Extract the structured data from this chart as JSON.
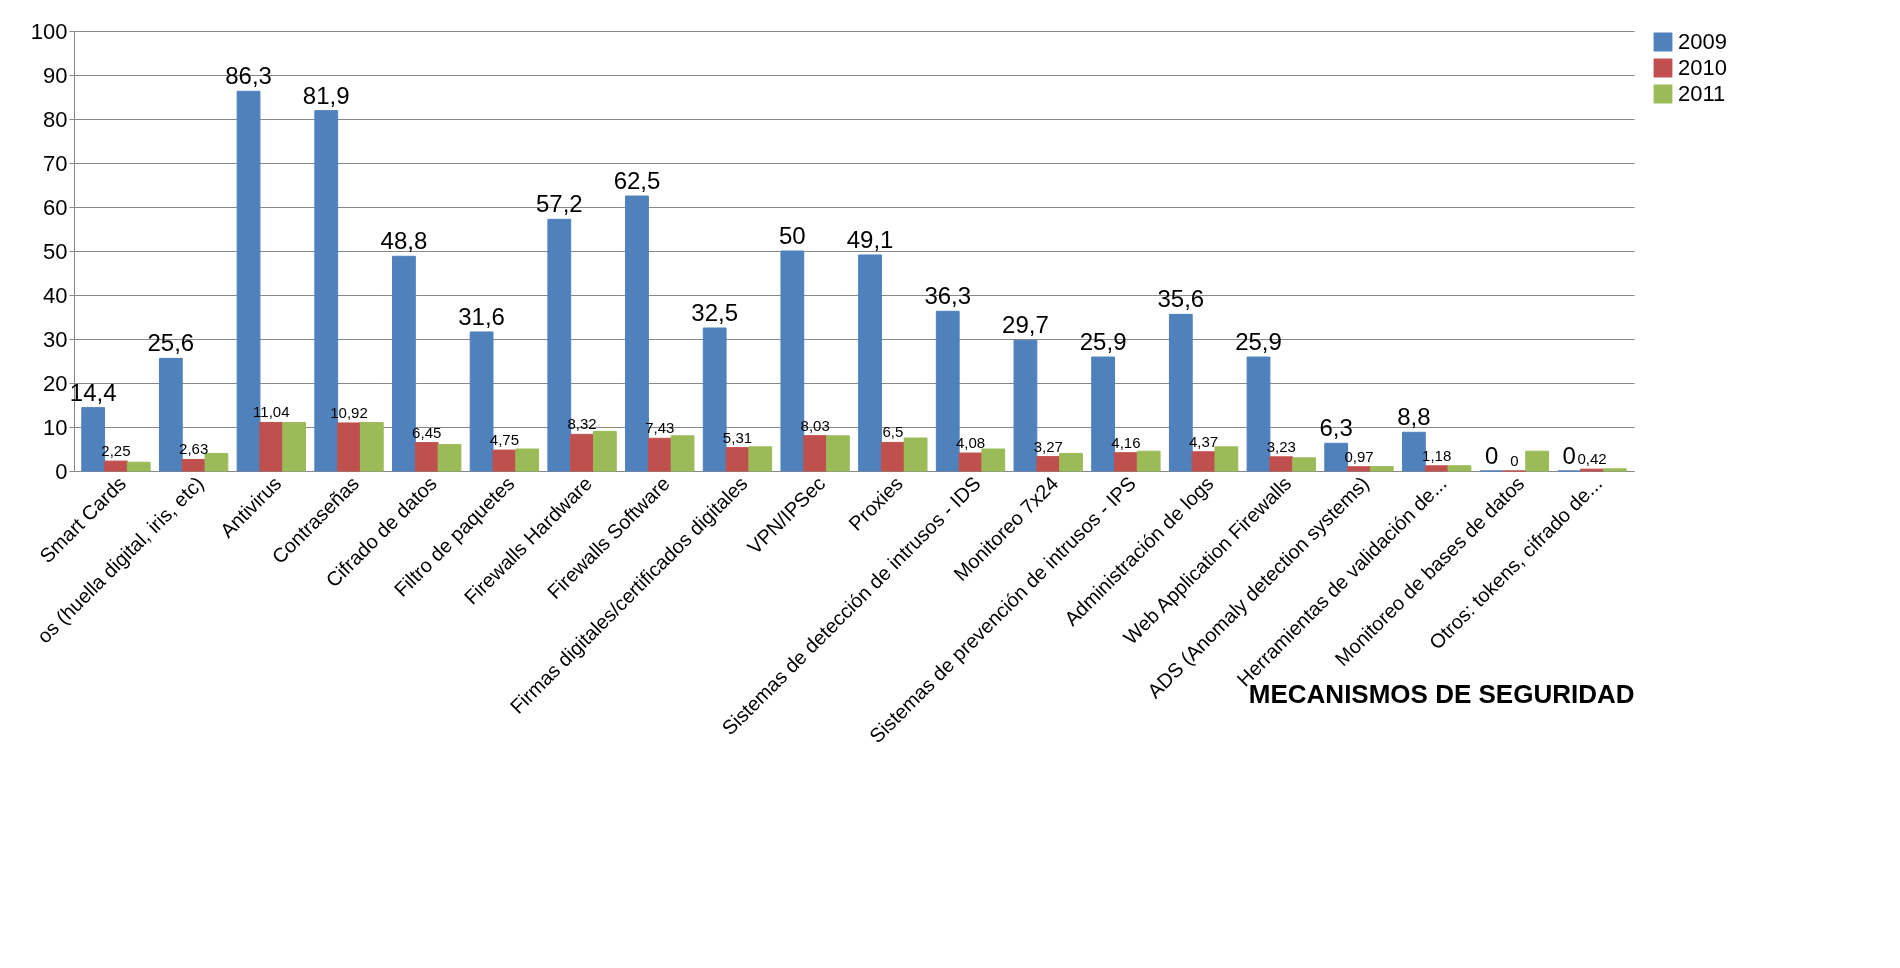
{
  "chart_data": {
    "type": "bar",
    "xlabel": "MECANISMOS DE SEGURIDAD",
    "categories": [
      "Smart Cards",
      "os (huella digital, iris, etc)",
      "Antivirus",
      "Contraseñas",
      "Cifrado de datos",
      "Filtro de paquetes",
      "Firewalls Hardware",
      "Firewalls Software",
      "Firmas digitales/certificados digitales",
      "VPN/IPSec",
      "Proxies",
      "Sistemas de detección de intrusos - IDS",
      "Monitoreo 7x24",
      "Sistemas de prevención de intrusos - IPS",
      "Administración de logs",
      "Web Application Firewalls",
      "ADS (Anomaly detection systems)",
      "Herramientas de validación de...",
      "Monitoreo de bases de datos",
      "Otros: tokens, cifrado de..."
    ],
    "series": [
      {
        "name": "2009",
        "color": "#4f81bd",
        "values": [
          14.4,
          25.6,
          86.3,
          81.9,
          48.8,
          31.6,
          57.2,
          62.5,
          32.5,
          50,
          49.1,
          36.3,
          29.7,
          25.9,
          35.6,
          25.9,
          6.3,
          8.8,
          0,
          0
        ],
        "value_labels": [
          "14,4",
          "25,6",
          "86,3",
          "81,9",
          "48,8",
          "31,6",
          "57,2",
          "62,5",
          "32,5",
          "50",
          "49,1",
          "36,3",
          "29,7",
          "25,9",
          "35,6",
          "25,9",
          "6,3",
          "8,8",
          "0",
          "0"
        ]
      },
      {
        "name": "2010",
        "color": "#c0504d",
        "values": [
          2.25,
          2.63,
          11.04,
          10.92,
          6.45,
          4.75,
          8.32,
          7.43,
          5.31,
          8.03,
          6.5,
          4.08,
          3.27,
          4.16,
          4.37,
          3.23,
          0.97,
          1.18,
          0,
          0.42
        ],
        "value_labels": [
          "2,25",
          "2,63",
          "11,04",
          "10,92",
          "6,45",
          "4,75",
          "8,32",
          "7,43",
          "5,31",
          "8,03",
          "6,5",
          "4,08",
          "3,27",
          "4,16",
          "4,37",
          "3,23",
          "0,97",
          "1,18",
          "0",
          "0,42"
        ]
      },
      {
        "name": "2011",
        "color": "#9bbb59",
        "values": [
          2,
          4,
          11,
          11,
          6,
          5,
          9,
          8,
          5.5,
          8,
          7.5,
          5,
          4,
          4.5,
          5.5,
          3,
          1,
          1.2,
          4.5,
          0.5
        ]
      }
    ],
    "ylim": [
      0,
      100
    ],
    "yticks": [
      0,
      10,
      20,
      30,
      40,
      50,
      60,
      70,
      80,
      90,
      100
    ],
    "grid": "y",
    "legend": "right"
  }
}
